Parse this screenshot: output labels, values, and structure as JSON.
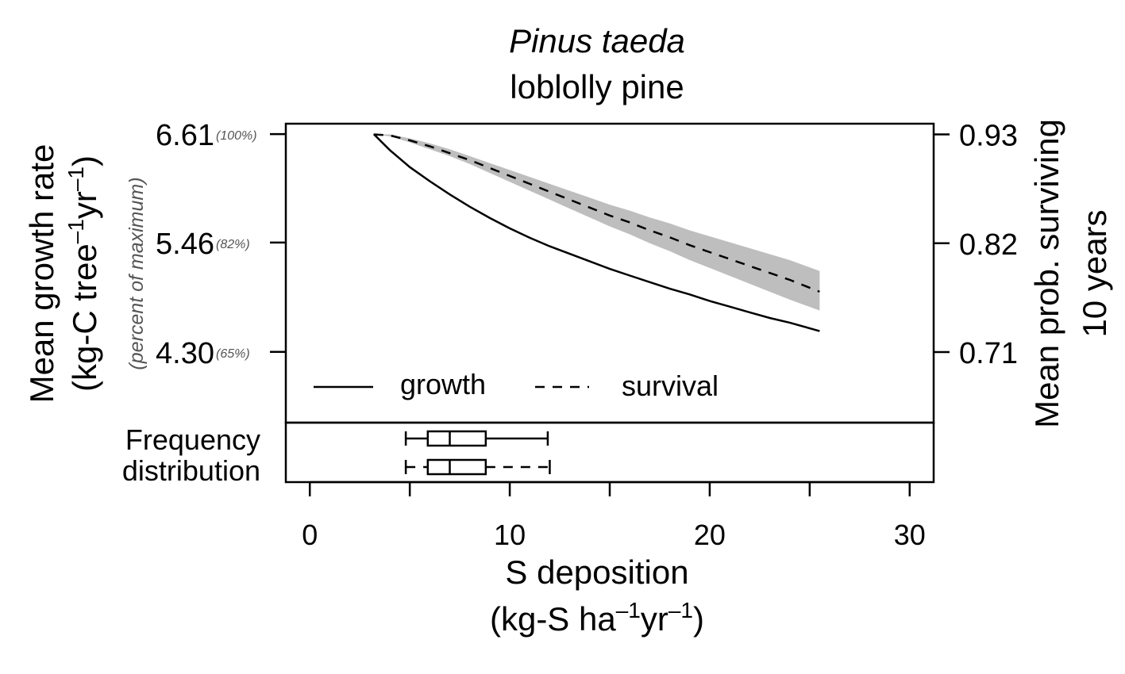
{
  "chart_data": {
    "type": "line",
    "title": "Pinus taeda",
    "subtitle": "loblolly pine",
    "xlabel": "S deposition",
    "xlabel_units": {
      "open": "(kg-S ha",
      "sup1": "–1",
      "mid": "yr",
      "sup2": "–1",
      "close": ")"
    },
    "xlim": [
      -1.2,
      31.2
    ],
    "xticks": [
      0,
      5,
      10,
      15,
      20,
      25,
      30
    ],
    "xtick_labels": [
      {
        "value": 0,
        "label": "0"
      },
      {
        "value": 10,
        "label": "10"
      },
      {
        "value": 20,
        "label": "20"
      },
      {
        "value": 30,
        "label": "30"
      }
    ],
    "ylabel_left": "Mean growth rate",
    "ylabel_left_units": {
      "open": "(kg-C tree",
      "sup1": "–1",
      "mid": "yr",
      "sup2": "–1",
      "close": ")"
    },
    "ylabel_left_note": "(percent of maximum)",
    "ylim_left": [
      3.55,
      6.72
    ],
    "yticks_left": [
      {
        "value": 6.61,
        "label": "6.61",
        "pct": "(100%)"
      },
      {
        "value": 5.46,
        "label": "5.46",
        "pct": "(82%)"
      },
      {
        "value": 4.3,
        "label": "4.30",
        "pct": "(65%)"
      }
    ],
    "ylabel_right_1": "Mean prob. surviving",
    "ylabel_right_2": "10 years",
    "ylim_right": [
      0.6387,
      0.9408
    ],
    "yticks_right": [
      {
        "value": 0.93,
        "label": "0.93"
      },
      {
        "value": 0.82,
        "label": "0.82"
      },
      {
        "value": 0.71,
        "label": "0.71"
      }
    ],
    "series": [
      {
        "name": "growth",
        "axis": "left",
        "style": "solid",
        "x": [
          3.2,
          4,
          5,
          6,
          7,
          8,
          9,
          10,
          11,
          12,
          13,
          14,
          15,
          16,
          17,
          18,
          19,
          20,
          21,
          22,
          23,
          24,
          25.5
        ],
        "y": [
          6.61,
          6.44,
          6.26,
          6.11,
          5.97,
          5.84,
          5.72,
          5.61,
          5.51,
          5.42,
          5.34,
          5.26,
          5.18,
          5.11,
          5.04,
          4.97,
          4.91,
          4.84,
          4.78,
          4.72,
          4.66,
          4.61,
          4.52
        ]
      },
      {
        "name": "survival",
        "axis": "right",
        "style": "dashed",
        "x": [
          3.2,
          4,
          5,
          6,
          7,
          8,
          9,
          10,
          11,
          12,
          13,
          14,
          15,
          16,
          17,
          18,
          19,
          20,
          21,
          22,
          23,
          24,
          25.5
        ],
        "y": [
          0.93,
          0.929,
          0.924,
          0.918,
          0.911,
          0.904,
          0.896,
          0.888,
          0.88,
          0.872,
          0.864,
          0.856,
          0.848,
          0.841,
          0.833,
          0.826,
          0.818,
          0.811,
          0.804,
          0.797,
          0.79,
          0.783,
          0.771
        ],
        "ci_lower": [
          0.93,
          0.928,
          0.922,
          0.915,
          0.908,
          0.9,
          0.891,
          0.882,
          0.873,
          0.864,
          0.855,
          0.846,
          0.837,
          0.829,
          0.82,
          0.812,
          0.803,
          0.795,
          0.787,
          0.779,
          0.771,
          0.763,
          0.752
        ],
        "ci_upper": [
          0.93,
          0.93,
          0.926,
          0.921,
          0.915,
          0.908,
          0.901,
          0.894,
          0.887,
          0.88,
          0.873,
          0.866,
          0.859,
          0.853,
          0.846,
          0.84,
          0.833,
          0.827,
          0.821,
          0.815,
          0.809,
          0.803,
          0.792
        ],
        "ci_color": "#bebebe"
      }
    ],
    "legend": {
      "placement": "bottom-left",
      "entries": [
        "growth",
        "survival"
      ]
    },
    "frequency_label_1": "Frequency",
    "frequency_label_2": "distribution",
    "boxplots": [
      {
        "series": "growth",
        "style": "solid",
        "min": 4.8,
        "q1": 5.9,
        "median": 7.0,
        "q3": 8.8,
        "max": 11.9
      },
      {
        "series": "survival",
        "style": "dashed",
        "min": 4.8,
        "q1": 5.9,
        "median": 7.0,
        "q3": 8.8,
        "max": 12.0
      }
    ]
  }
}
